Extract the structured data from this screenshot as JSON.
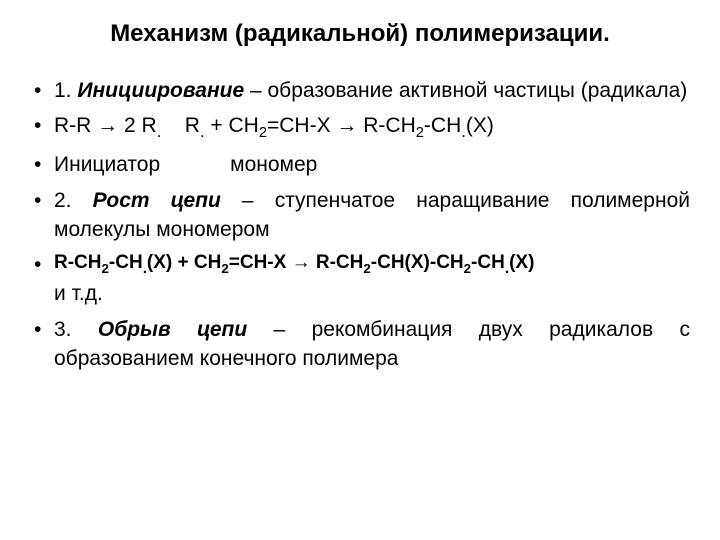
{
  "title": "Механизм (радикальной) полимеризации.",
  "items": {
    "initiation_prefix": "1. ",
    "initiation_term": "Инициирование",
    "initiation_suffix": " – образование активной частицы (радикала)",
    "reaction1_part1": "R-R → 2 R",
    "reaction1_dot": ".",
    "reaction1_spaces": "    ",
    "reaction1_part2": "R",
    "reaction1_dot2": ".",
    "reaction1_part3": " + CH",
    "reaction1_sub1": "2",
    "reaction1_part4": "=CH-X  →  R-CH",
    "reaction1_sub2": "2",
    "reaction1_part5": "-CH",
    "reaction1_dot3": ".",
    "reaction1_part6": "(X)",
    "initiator_label": "Инициатор            мономер",
    "growth_prefix": "2. ",
    "growth_term": "Рост цепи",
    "growth_suffix": " – ступенчатое наращивание полимерной молекулы мономером",
    "reaction2_part1": "R-CH",
    "reaction2_sub1": "2",
    "reaction2_part2": "-CH",
    "reaction2_dot1": ".",
    "reaction2_part3": "(X) + CH",
    "reaction2_sub2": "2",
    "reaction2_part4": "=CH-X → R-CH",
    "reaction2_sub3": "2",
    "reaction2_part5": "-CH(X)-CH",
    "reaction2_sub4": "2",
    "reaction2_part6": "-CH",
    "reaction2_dot2": ".",
    "reaction2_part7": "(X)",
    "reaction2_suffix": "и т.д.",
    "termination_prefix": "3. ",
    "termination_term": "Обрыв цепи",
    "termination_suffix": " – рекомбинация двух радикалов с образованием конечного полимера"
  },
  "colors": {
    "background": "#ffffff",
    "text": "#000000"
  },
  "typography": {
    "title_fontsize": 24,
    "body_fontsize": 21,
    "smaller_fontsize": 19,
    "font_family": "Arial"
  }
}
